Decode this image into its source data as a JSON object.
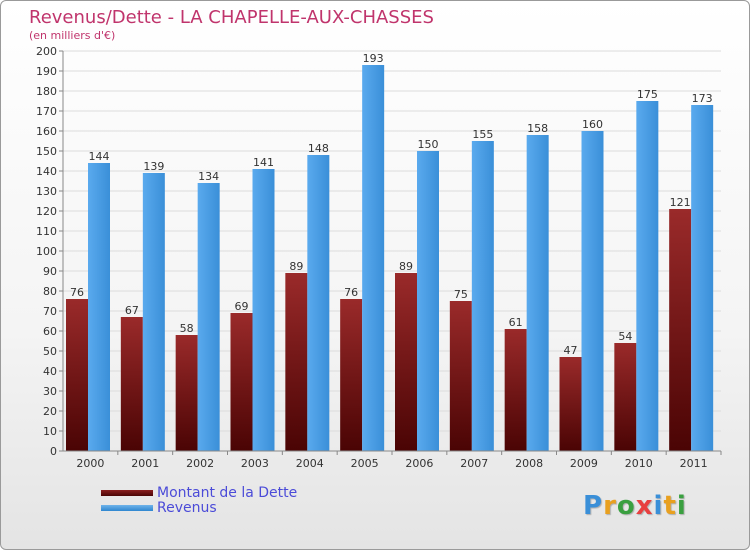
{
  "header": {
    "title": "Revenus/Dette - LA CHAPELLE-AUX-CHASSES",
    "subtitle": "(en milliers d'€)"
  },
  "legend": {
    "debt_label": "Montant de la Dette",
    "revenue_label": "Revenus"
  },
  "logo": {
    "text": "Proxiti"
  },
  "colors": {
    "debt": "#7a1818",
    "revenue": "#4a9fe6",
    "title": "#c0346c",
    "legend_text": "#4b4bd8"
  },
  "chart_data": {
    "type": "bar",
    "title": "Revenus/Dette - LA CHAPELLE-AUX-CHASSES",
    "subtitle": "(en milliers d'€)",
    "xlabel": "",
    "ylabel": "",
    "categories": [
      "2000",
      "2001",
      "2002",
      "2003",
      "2004",
      "2005",
      "2006",
      "2007",
      "2008",
      "2009",
      "2010",
      "2011"
    ],
    "series": [
      {
        "name": "Montant de la Dette",
        "values": [
          76,
          67,
          58,
          69,
          89,
          76,
          89,
          75,
          61,
          47,
          54,
          121
        ]
      },
      {
        "name": "Revenus",
        "values": [
          144,
          139,
          134,
          141,
          148,
          193,
          150,
          155,
          158,
          160,
          175,
          173
        ]
      }
    ],
    "ylim": [
      0,
      200
    ],
    "ytick_step": 10,
    "grid": true,
    "legend_position": "bottom-left"
  }
}
